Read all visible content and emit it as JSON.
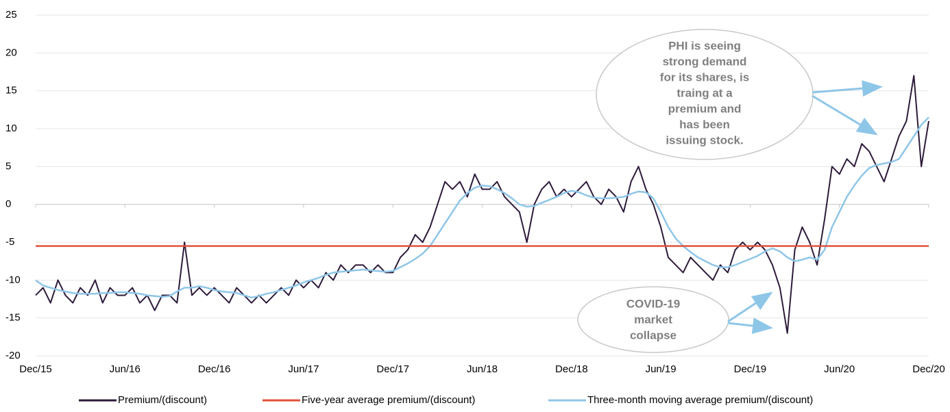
{
  "chart_data": {
    "type": "line",
    "categories": [
      "Dec/15",
      null,
      null,
      null,
      null,
      null,
      null,
      null,
      null,
      null,
      null,
      null,
      "Jun/16",
      null,
      null,
      null,
      null,
      null,
      null,
      null,
      null,
      null,
      null,
      null,
      "Dec/16",
      null,
      null,
      null,
      null,
      null,
      null,
      null,
      null,
      null,
      null,
      null,
      "Jun/17",
      null,
      null,
      null,
      null,
      null,
      null,
      null,
      null,
      null,
      null,
      null,
      "Dec/17",
      null,
      null,
      null,
      null,
      null,
      null,
      null,
      null,
      null,
      null,
      null,
      "Jun/18",
      null,
      null,
      null,
      null,
      null,
      null,
      null,
      null,
      null,
      null,
      null,
      "Dec/18",
      null,
      null,
      null,
      null,
      null,
      null,
      null,
      null,
      null,
      null,
      null,
      "Jun/19",
      null,
      null,
      null,
      null,
      null,
      null,
      null,
      null,
      null,
      null,
      null,
      "Dec/19",
      null,
      null,
      null,
      null,
      null,
      null,
      null,
      null,
      null,
      null,
      null,
      "Jun/20",
      null,
      null,
      null,
      null,
      null,
      null,
      null,
      null,
      null,
      null,
      null,
      "Dec/20"
    ],
    "series": [
      {
        "name": "Premium/(discount)",
        "color": "#2d1a3a",
        "values": [
          -12,
          -11,
          -13,
          -10,
          -12,
          -13,
          -11,
          -12,
          -10,
          -13,
          -11,
          -12,
          -12,
          -11,
          -13,
          -12,
          -14,
          -12,
          -12,
          -13,
          -5,
          -12,
          -11,
          -12,
          -11,
          -12,
          -13,
          -11,
          -12,
          -13,
          -12,
          -13,
          -12,
          -11,
          -12,
          -10,
          -11,
          -10,
          -11,
          -9,
          -10,
          -8,
          -9,
          -8,
          -8,
          -9,
          -8,
          -9,
          -9,
          -7,
          -6,
          -4,
          -5,
          -3,
          0,
          3,
          2,
          3,
          1,
          4,
          2,
          2,
          3,
          1,
          0,
          -1,
          -5,
          0,
          2,
          3,
          1,
          2,
          1,
          2,
          3,
          1,
          0,
          2,
          1,
          -1,
          3,
          5,
          2,
          0,
          -3,
          -7,
          -8,
          -9,
          -7,
          -8,
          -9,
          -10,
          -8,
          -9,
          -6,
          -5,
          -6,
          -5,
          -6,
          -8,
          -11,
          -17,
          -6,
          -3,
          -5,
          -8,
          -2,
          5,
          4,
          6,
          5,
          8,
          7,
          5,
          3,
          6,
          9,
          11,
          17,
          5,
          11
        ]
      },
      {
        "name": "Five-year average premium/(discount)",
        "color": "#e0523a",
        "values": [
          -5.5,
          -5.5,
          -5.5,
          -5.5,
          -5.5,
          -5.5,
          -5.5,
          -5.5,
          -5.5,
          -5.5,
          -5.5,
          -5.5,
          -5.5,
          -5.5,
          -5.5,
          -5.5,
          -5.5,
          -5.5,
          -5.5,
          -5.5,
          -5.5,
          -5.5,
          -5.5,
          -5.5,
          -5.5,
          -5.5,
          -5.5,
          -5.5,
          -5.5,
          -5.5,
          -5.5,
          -5.5,
          -5.5,
          -5.5,
          -5.5,
          -5.5,
          -5.5,
          -5.5,
          -5.5,
          -5.5,
          -5.5,
          -5.5,
          -5.5,
          -5.5,
          -5.5,
          -5.5,
          -5.5,
          -5.5,
          -5.5,
          -5.5,
          -5.5,
          -5.5,
          -5.5,
          -5.5,
          -5.5,
          -5.5,
          -5.5,
          -5.5,
          -5.5,
          -5.5,
          -5.5,
          -5.5,
          -5.5,
          -5.5,
          -5.5,
          -5.5,
          -5.5,
          -5.5,
          -5.5,
          -5.5,
          -5.5,
          -5.5,
          -5.5,
          -5.5,
          -5.5,
          -5.5,
          -5.5,
          -5.5,
          -5.5,
          -5.5,
          -5.5,
          -5.5,
          -5.5,
          -5.5,
          -5.5,
          -5.5,
          -5.5,
          -5.5,
          -5.5,
          -5.5,
          -5.5,
          -5.5,
          -5.5,
          -5.5,
          -5.5,
          -5.5,
          -5.5,
          -5.5,
          -5.5,
          -5.5,
          -5.5,
          -5.5,
          -5.5,
          -5.5,
          -5.5,
          -5.5,
          -5.5,
          -5.5,
          -5.5,
          -5.5,
          -5.5,
          -5.5,
          -5.5,
          -5.5,
          -5.5,
          -5.5,
          -5.5,
          -5.5,
          -5.5,
          -5.5,
          -5.5
        ]
      },
      {
        "name": "Three-month moving average premium/(discount)",
        "color": "#8ec6e8",
        "values": [
          -10,
          -10.7,
          -11,
          -11.3,
          -11.5,
          -11.7,
          -11.8,
          -11.8,
          -11.8,
          -11.7,
          -11.7,
          -11.6,
          -11.6,
          -11.7,
          -11.8,
          -12,
          -12.1,
          -12.2,
          -12.1,
          -11.5,
          -11,
          -11,
          -10.8,
          -11,
          -11.3,
          -11.5,
          -11.6,
          -11.7,
          -12,
          -12.3,
          -12.1,
          -11.8,
          -11.6,
          -11.3,
          -11,
          -10.7,
          -10.3,
          -10,
          -9.7,
          -9.3,
          -9,
          -8.9,
          -8.8,
          -8.7,
          -8.6,
          -8.7,
          -8.8,
          -8.9,
          -8.8,
          -8.3,
          -7.8,
          -7.2,
          -6.5,
          -5.5,
          -4,
          -2.5,
          -1,
          0.5,
          1.5,
          2.2,
          2.5,
          2.4,
          2,
          1.5,
          0.8,
          0,
          -0.3,
          -0.2,
          0.2,
          0.6,
          1,
          1.5,
          1.8,
          1.6,
          1.2,
          0.9,
          0.8,
          0.8,
          0.9,
          1,
          1.4,
          1.7,
          1.6,
          0.8,
          -1,
          -3,
          -4.5,
          -5.5,
          -6.3,
          -7,
          -7.5,
          -8,
          -8.3,
          -8.3,
          -8,
          -7.6,
          -7.2,
          -6.8,
          -6.2,
          -5.8,
          -6.2,
          -7,
          -7.5,
          -7.3,
          -7,
          -7.3,
          -6,
          -3,
          -1,
          1,
          2.5,
          3.8,
          4.8,
          5.2,
          5.4,
          5.6,
          6,
          7.5,
          9,
          10.5,
          11.5
        ]
      }
    ],
    "ylim": [
      -20,
      25
    ],
    "yticks": [
      -20,
      -15,
      -10,
      -5,
      0,
      5,
      10,
      15,
      20,
      25
    ],
    "grid": true,
    "legend": "bottom",
    "annotations": [
      {
        "lines": [
          "PHI is seeing",
          "strong demand",
          "for its shares, is",
          "traing at a",
          "premium and",
          "has been",
          "issuing stock."
        ]
      },
      {
        "lines": [
          "COVID-19",
          "market",
          "collapse"
        ]
      }
    ]
  }
}
